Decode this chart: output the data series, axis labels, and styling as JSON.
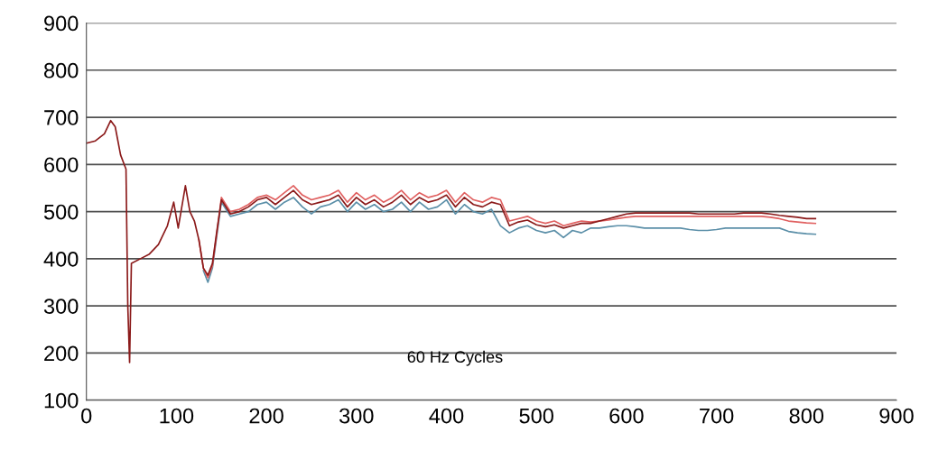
{
  "chart_data": {
    "type": "line",
    "annotations": [
      "60 Hz Cycles"
    ],
    "x": [
      0,
      10,
      20,
      27,
      32,
      38,
      44,
      46,
      48,
      50,
      60,
      70,
      80,
      90,
      97,
      102,
      110,
      115,
      120,
      125,
      130,
      135,
      140,
      145,
      150,
      160,
      170,
      180,
      190,
      200,
      210,
      220,
      230,
      240,
      250,
      260,
      270,
      280,
      290,
      300,
      310,
      320,
      330,
      340,
      350,
      360,
      370,
      380,
      390,
      400,
      410,
      420,
      430,
      440,
      450,
      460,
      470,
      480,
      490,
      500,
      510,
      520,
      530,
      540,
      550,
      560,
      570,
      580,
      590,
      600,
      610,
      620,
      630,
      640,
      650,
      660,
      670,
      680,
      690,
      700,
      710,
      720,
      730,
      740,
      750,
      760,
      770,
      780,
      790,
      800,
      810
    ],
    "series": [
      {
        "color": "#5b8fa8",
        "values": [
          null,
          null,
          null,
          null,
          null,
          null,
          null,
          null,
          null,
          null,
          null,
          null,
          null,
          null,
          null,
          null,
          null,
          null,
          null,
          null,
          375,
          350,
          380,
          450,
          520,
          490,
          495,
          500,
          515,
          520,
          505,
          520,
          530,
          510,
          495,
          510,
          515,
          525,
          500,
          520,
          505,
          515,
          500,
          505,
          520,
          500,
          520,
          505,
          510,
          525,
          495,
          515,
          500,
          495,
          505,
          470,
          455,
          465,
          470,
          460,
          455,
          460,
          445,
          460,
          455,
          465,
          465,
          468,
          470,
          470,
          468,
          465,
          465,
          465,
          465,
          465,
          462,
          460,
          460,
          462,
          465,
          465,
          465,
          465,
          465,
          465,
          465,
          458,
          455,
          453,
          452
        ]
      },
      {
        "color": "#e06060",
        "values": [
          null,
          null,
          null,
          null,
          null,
          null,
          null,
          null,
          null,
          null,
          null,
          null,
          null,
          null,
          null,
          null,
          null,
          null,
          null,
          440,
          380,
          360,
          385,
          455,
          530,
          500,
          505,
          515,
          530,
          535,
          525,
          540,
          555,
          535,
          525,
          530,
          535,
          545,
          520,
          540,
          525,
          535,
          520,
          530,
          545,
          525,
          540,
          530,
          535,
          545,
          520,
          540,
          525,
          520,
          530,
          525,
          480,
          485,
          490,
          480,
          475,
          480,
          470,
          475,
          480,
          478,
          480,
          482,
          485,
          488,
          490,
          490,
          490,
          490,
          490,
          490,
          490,
          490,
          490,
          490,
          490,
          490,
          490,
          490,
          490,
          488,
          485,
          480,
          478,
          476,
          475
        ]
      },
      {
        "color": "#8b1a1a",
        "values": [
          645,
          650,
          665,
          693,
          680,
          620,
          590,
          300,
          180,
          390,
          400,
          410,
          430,
          470,
          520,
          465,
          555,
          500,
          480,
          440,
          380,
          365,
          390,
          460,
          525,
          495,
          500,
          510,
          525,
          530,
          515,
          530,
          545,
          525,
          515,
          520,
          525,
          535,
          510,
          530,
          515,
          525,
          510,
          520,
          535,
          515,
          530,
          520,
          525,
          535,
          510,
          530,
          515,
          510,
          520,
          515,
          470,
          478,
          482,
          472,
          468,
          472,
          465,
          470,
          475,
          475,
          480,
          485,
          490,
          495,
          497,
          497,
          497,
          497,
          497,
          497,
          497,
          495,
          495,
          495,
          495,
          495,
          497,
          497,
          497,
          495,
          492,
          490,
          488,
          485,
          485
        ]
      }
    ],
    "xlim": [
      0,
      900
    ],
    "xticks": [
      0,
      100,
      200,
      300,
      400,
      500,
      600,
      700,
      800,
      900
    ],
    "ylim": [
      100,
      900
    ],
    "yticks": [
      100,
      200,
      300,
      400,
      500,
      600,
      700,
      800,
      900
    ],
    "grid": "y",
    "legend": false
  }
}
